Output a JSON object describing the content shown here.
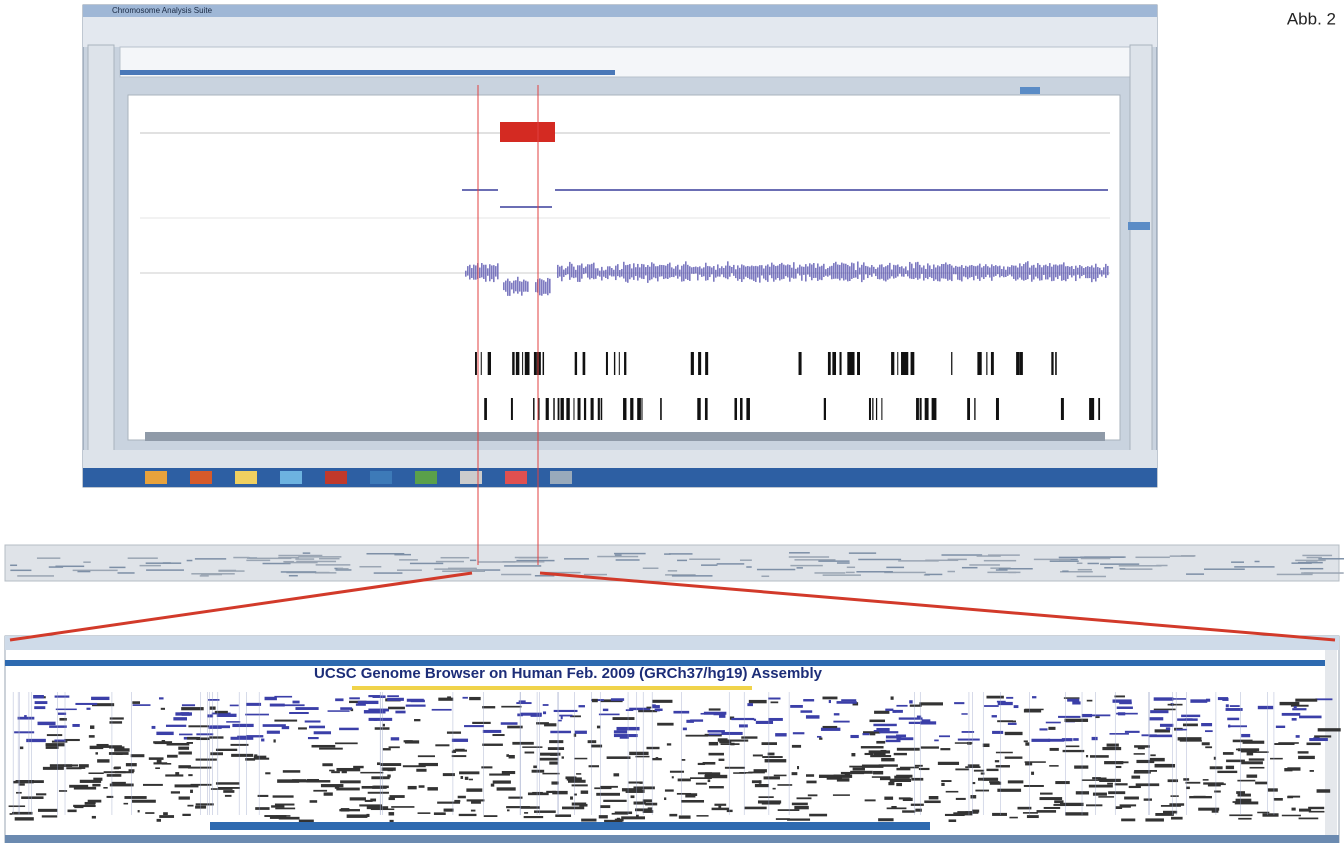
{
  "figure_label": "Abb. 2",
  "app": {
    "window_title": "Chromosome Analysis Suite"
  },
  "browser": {
    "title": "UCSC Genome Browser on Human Feb. 2009 (GRCh37/hg19) Assembly"
  }
}
